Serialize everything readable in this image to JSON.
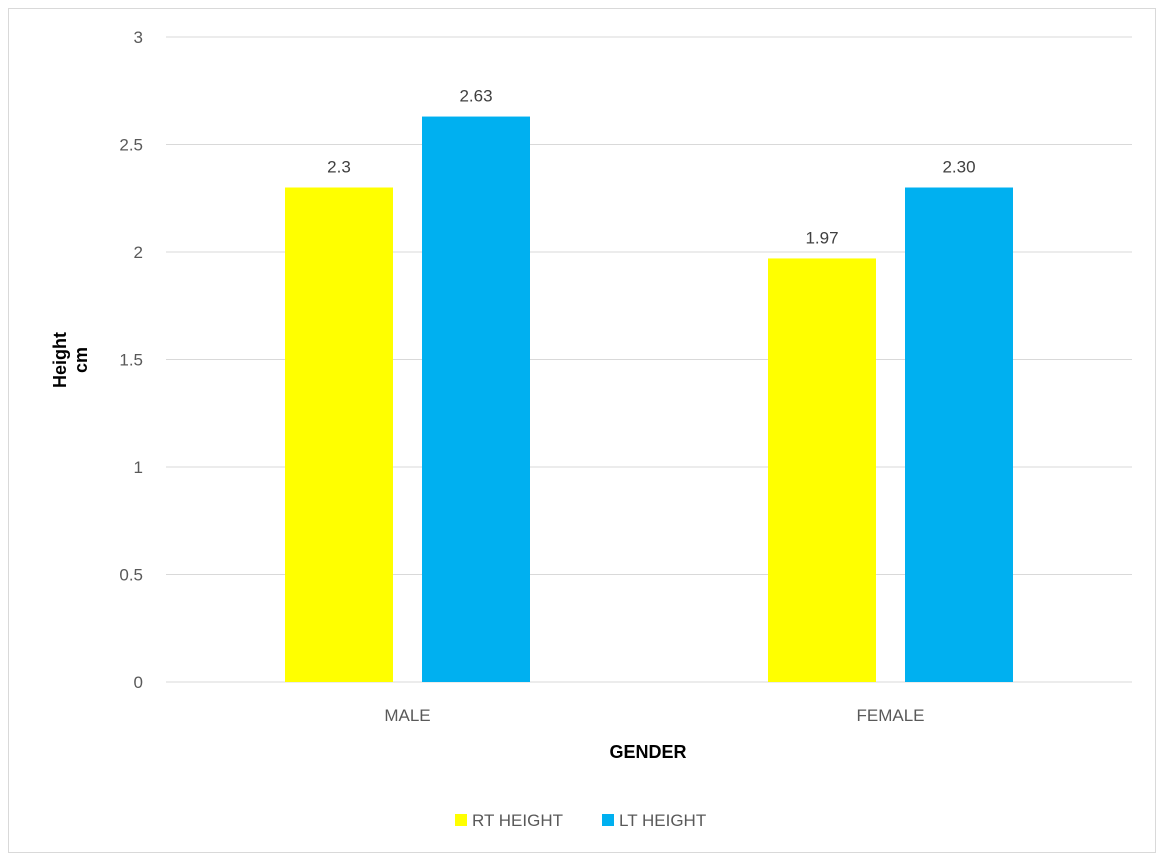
{
  "chart_data": {
    "type": "bar",
    "title": "",
    "xlabel": "GENDER",
    "ylabel": [
      "Height",
      "cm"
    ],
    "categories": [
      "MALE",
      "FEMALE"
    ],
    "ylim": [
      0,
      3
    ],
    "yticks": [
      "0",
      "0.5",
      "1",
      "1.5",
      "2",
      "2.5",
      "3"
    ],
    "grid": true,
    "legend_position": "bottom",
    "series": [
      {
        "name": "RT HEIGHT",
        "color": "#ffff00",
        "values": [
          2.3,
          1.97
        ],
        "labels": [
          "2.3",
          "1.97"
        ]
      },
      {
        "name": "LT HEIGHT",
        "color": "#00b0f0",
        "values": [
          2.63,
          2.3
        ],
        "labels": [
          "2.63",
          "2.30"
        ]
      }
    ]
  }
}
